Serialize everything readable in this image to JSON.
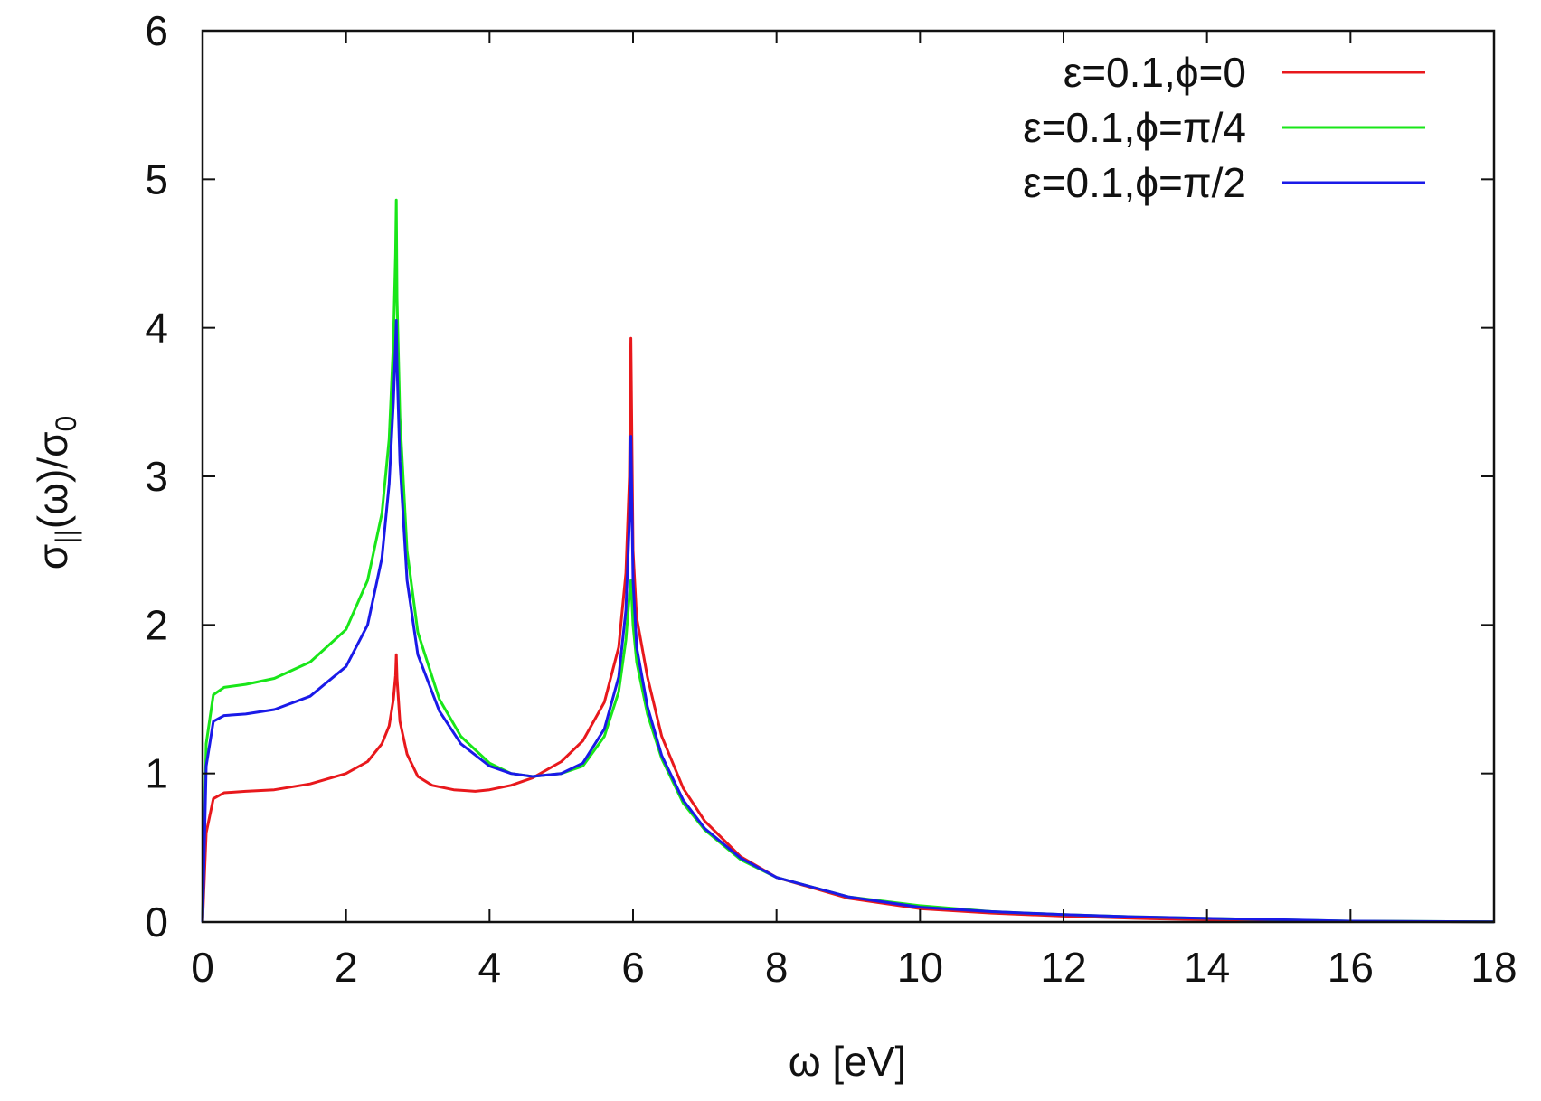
{
  "chart_data": {
    "type": "line",
    "title": "",
    "xlabel": "ω [eV]",
    "ylabel": "σ||(ω)/σ0",
    "ylabel_parts": {
      "sigma": "σ",
      "par": "||",
      "omega": "(ω)/σ",
      "zero": "0"
    },
    "xlim": [
      0,
      18
    ],
    "ylim": [
      0,
      6
    ],
    "xticks": [
      0,
      2,
      4,
      6,
      8,
      10,
      12,
      14,
      16,
      18
    ],
    "yticks": [
      0,
      1,
      2,
      3,
      4,
      5,
      6
    ],
    "grid": false,
    "legend_position": "top-right",
    "series": [
      {
        "name": "ε=0.1,ϕ=0",
        "color": "#e8181c",
        "points": [
          [
            0,
            0
          ],
          [
            0.05,
            0.6
          ],
          [
            0.15,
            0.83
          ],
          [
            0.3,
            0.87
          ],
          [
            0.6,
            0.88
          ],
          [
            1.0,
            0.89
          ],
          [
            1.5,
            0.93
          ],
          [
            2.0,
            1.0
          ],
          [
            2.3,
            1.08
          ],
          [
            2.5,
            1.2
          ],
          [
            2.6,
            1.32
          ],
          [
            2.66,
            1.5
          ],
          [
            2.69,
            1.66
          ],
          [
            2.7,
            1.8
          ],
          [
            2.71,
            1.64
          ],
          [
            2.75,
            1.35
          ],
          [
            2.85,
            1.13
          ],
          [
            3.0,
            0.98
          ],
          [
            3.2,
            0.92
          ],
          [
            3.5,
            0.89
          ],
          [
            3.8,
            0.88
          ],
          [
            4.0,
            0.89
          ],
          [
            4.3,
            0.92
          ],
          [
            4.6,
            0.97
          ],
          [
            5.0,
            1.08
          ],
          [
            5.3,
            1.22
          ],
          [
            5.6,
            1.48
          ],
          [
            5.8,
            1.85
          ],
          [
            5.9,
            2.35
          ],
          [
            5.95,
            3.0
          ],
          [
            5.97,
            3.93
          ],
          [
            6.0,
            2.5
          ],
          [
            6.05,
            2.05
          ],
          [
            6.2,
            1.65
          ],
          [
            6.4,
            1.25
          ],
          [
            6.7,
            0.9
          ],
          [
            7.0,
            0.68
          ],
          [
            7.5,
            0.44
          ],
          [
            8.0,
            0.3
          ],
          [
            9.0,
            0.16
          ],
          [
            10.0,
            0.09
          ],
          [
            11.0,
            0.06
          ],
          [
            12.0,
            0.04
          ],
          [
            13.0,
            0.025
          ],
          [
            14.0,
            0.015
          ],
          [
            15.0,
            0.008
          ],
          [
            16.0,
            0.004
          ],
          [
            18.0,
            0.002
          ]
        ]
      },
      {
        "name": "ε=0.1,ϕ=π/4",
        "color": "#19e619",
        "points": [
          [
            0,
            0
          ],
          [
            0.05,
            1.2
          ],
          [
            0.15,
            1.53
          ],
          [
            0.3,
            1.58
          ],
          [
            0.6,
            1.6
          ],
          [
            1.0,
            1.64
          ],
          [
            1.5,
            1.75
          ],
          [
            2.0,
            1.97
          ],
          [
            2.3,
            2.3
          ],
          [
            2.5,
            2.75
          ],
          [
            2.6,
            3.25
          ],
          [
            2.66,
            3.9
          ],
          [
            2.69,
            4.5
          ],
          [
            2.7,
            4.86
          ],
          [
            2.71,
            4.2
          ],
          [
            2.75,
            3.4
          ],
          [
            2.85,
            2.5
          ],
          [
            3.0,
            1.95
          ],
          [
            3.3,
            1.5
          ],
          [
            3.6,
            1.25
          ],
          [
            4.0,
            1.07
          ],
          [
            4.3,
            1.0
          ],
          [
            4.6,
            0.98
          ],
          [
            5.0,
            1.0
          ],
          [
            5.3,
            1.05
          ],
          [
            5.6,
            1.25
          ],
          [
            5.8,
            1.55
          ],
          [
            5.9,
            1.9
          ],
          [
            5.95,
            2.2
          ],
          [
            5.97,
            2.3
          ],
          [
            6.0,
            2.0
          ],
          [
            6.05,
            1.75
          ],
          [
            6.2,
            1.4
          ],
          [
            6.4,
            1.1
          ],
          [
            6.7,
            0.8
          ],
          [
            7.0,
            0.62
          ],
          [
            7.5,
            0.42
          ],
          [
            8.0,
            0.3
          ],
          [
            9.0,
            0.17
          ],
          [
            10.0,
            0.11
          ],
          [
            11.0,
            0.07
          ],
          [
            12.0,
            0.05
          ],
          [
            13.0,
            0.035
          ],
          [
            14.0,
            0.025
          ],
          [
            15.0,
            0.015
          ],
          [
            16.0,
            0.006
          ],
          [
            18.0,
            0.002
          ]
        ]
      },
      {
        "name": "ε=0.1,ϕ=π/2",
        "color": "#1a1ae8",
        "points": [
          [
            0,
            0
          ],
          [
            0.05,
            1.05
          ],
          [
            0.15,
            1.35
          ],
          [
            0.3,
            1.39
          ],
          [
            0.6,
            1.4
          ],
          [
            1.0,
            1.43
          ],
          [
            1.5,
            1.52
          ],
          [
            2.0,
            1.72
          ],
          [
            2.3,
            2.0
          ],
          [
            2.5,
            2.45
          ],
          [
            2.6,
            2.95
          ],
          [
            2.66,
            3.5
          ],
          [
            2.69,
            3.9
          ],
          [
            2.7,
            4.05
          ],
          [
            2.71,
            3.75
          ],
          [
            2.75,
            3.1
          ],
          [
            2.85,
            2.3
          ],
          [
            3.0,
            1.8
          ],
          [
            3.3,
            1.42
          ],
          [
            3.6,
            1.2
          ],
          [
            4.0,
            1.05
          ],
          [
            4.3,
            1.0
          ],
          [
            4.6,
            0.98
          ],
          [
            5.0,
            1.0
          ],
          [
            5.3,
            1.07
          ],
          [
            5.6,
            1.3
          ],
          [
            5.8,
            1.65
          ],
          [
            5.9,
            2.1
          ],
          [
            5.95,
            2.7
          ],
          [
            5.97,
            3.27
          ],
          [
            6.0,
            2.3
          ],
          [
            6.05,
            1.85
          ],
          [
            6.2,
            1.45
          ],
          [
            6.4,
            1.12
          ],
          [
            6.7,
            0.82
          ],
          [
            7.0,
            0.63
          ],
          [
            7.5,
            0.43
          ],
          [
            8.0,
            0.3
          ],
          [
            9.0,
            0.17
          ],
          [
            10.0,
            0.1
          ],
          [
            11.0,
            0.07
          ],
          [
            12.0,
            0.05
          ],
          [
            13.0,
            0.035
          ],
          [
            14.0,
            0.025
          ],
          [
            15.0,
            0.016
          ],
          [
            16.0,
            0.006
          ],
          [
            18.0,
            0.002
          ]
        ]
      }
    ]
  }
}
